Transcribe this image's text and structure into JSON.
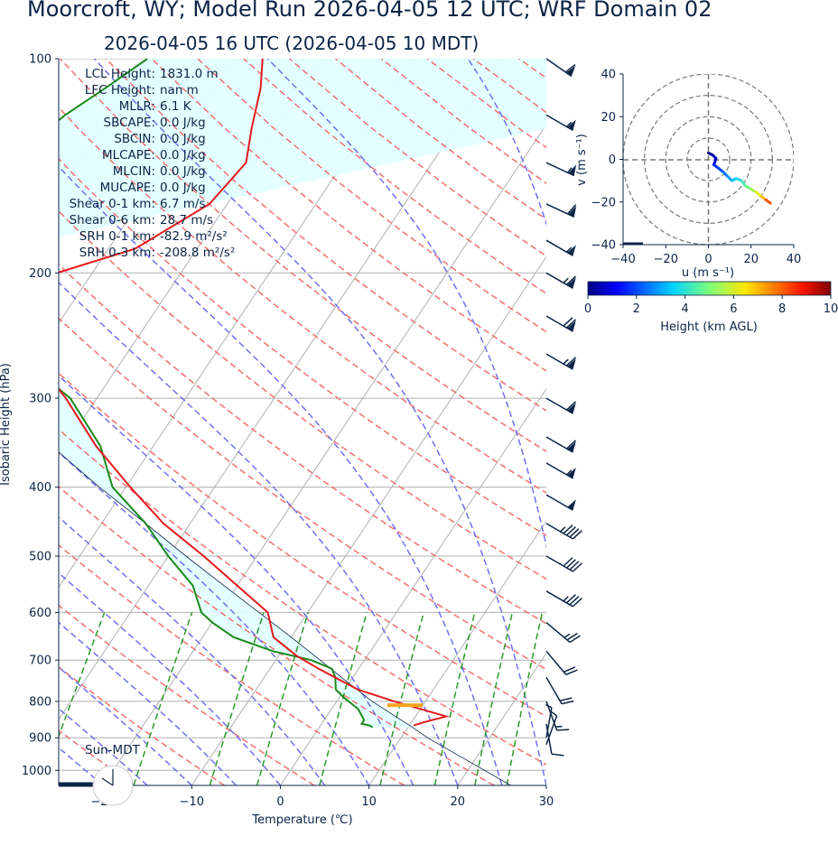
{
  "title": "Moorcroft, WY; Model Run 2026-04-05 12 UTC; WRF Domain 02",
  "subtitle": "2026-04-05 16 UTC  (2026-04-05 10 MDT)",
  "annotations": [
    {
      "label": "LCL Height:",
      "value": "1831.0 m"
    },
    {
      "label": "LFC Height:",
      "value": "nan m"
    },
    {
      "label": "MLLR:",
      "value": "6.1 K"
    },
    {
      "label": "SBCAPE:",
      "value": "0.0 J/kg"
    },
    {
      "label": "SBCIN:",
      "value": "0.0 J/kg"
    },
    {
      "label": "MLCAPE:",
      "value": "0.0 J/kg"
    },
    {
      "label": "MLCIN:",
      "value": "0.0 J/kg"
    },
    {
      "label": "MUCAPE:",
      "value": "0.0 J/kg"
    },
    {
      "label": "Shear 0-1 km:",
      "value": "6.7 m/s"
    },
    {
      "label": "Shear 0-6 km:",
      "value": "28.7 m/s"
    },
    {
      "label": "SRH 0-1 km:",
      "value": "-82.9 m²/s²"
    },
    {
      "label": "SRH 0-3 km:",
      "value": "-208.8 m²/s²"
    }
  ],
  "sun_label": "Sun-MDT",
  "colors": {
    "temperature": "#e31a1c",
    "dewpoint": "#1a8a1a",
    "parcel": "#0b2447",
    "cape_fill": "#e0ffff",
    "dry_adiabat": "#f07070",
    "moist_adiabat": "#7070f0",
    "mixing_ratio": "#2a9a2a",
    "isotherm": "#b0b0b0",
    "lcl_marker": "#f5a623",
    "text": "#0b2447"
  },
  "chart_data": [
    {
      "type": "line",
      "subtype": "skew-t",
      "xlabel": "Temperature (℃)",
      "ylabel": "Isobaric Height (hPa)",
      "xlim": [
        -25,
        30
      ],
      "ylim": [
        1050,
        100
      ],
      "x_ticks": [
        "−20",
        "−10",
        "0",
        "10",
        "20",
        "30"
      ],
      "x_tick_values": [
        -20,
        -10,
        0,
        10,
        20,
        30
      ],
      "y_ticks": [
        "100",
        "200",
        "300",
        "400",
        "500",
        "600",
        "700",
        "800",
        "900",
        "1000"
      ],
      "y_tick_values": [
        100,
        200,
        300,
        400,
        500,
        600,
        700,
        800,
        900,
        1000
      ],
      "series": [
        {
          "key": "temperature",
          "p": [
            865,
            855,
            840,
            800,
            770,
            720,
            690,
            650,
            600,
            550,
            500,
            450,
            400,
            350,
            300,
            280,
            250,
            225,
            215,
            200,
            185,
            160,
            140,
            125,
            110,
            100
          ],
          "t": [
            10.5,
            11.5,
            13.5,
            6.5,
            1.5,
            -4.5,
            -8.0,
            -12.0,
            -14.5,
            -20.0,
            -26.0,
            -33.0,
            -39.5,
            -46.5,
            -53.5,
            -57.0,
            -61.5,
            -65.5,
            -67.0,
            -64.0,
            -57.0,
            -52.0,
            -51.0,
            -53.0,
            -55.0,
            -57.0
          ]
        },
        {
          "key": "dewpoint",
          "p": [
            870,
            865,
            860,
            850,
            820,
            790,
            770,
            740,
            720,
            700,
            680,
            650,
            620,
            600,
            550,
            500,
            450,
            400,
            350,
            300,
            270,
            240,
            220,
            200,
            180,
            160,
            150,
            140,
            120,
            110,
            100
          ],
          "t": [
            6.0,
            5.5,
            4.5,
            4.5,
            3.0,
            0.5,
            -1.0,
            -2.0,
            -3.0,
            -6.0,
            -11.0,
            -16.5,
            -20.0,
            -22.0,
            -25.0,
            -30.0,
            -35.0,
            -41.5,
            -46.0,
            -53.0,
            -60.0,
            -67.0,
            -72.5,
            -75.5,
            -76.0,
            -79.0,
            -79.0,
            -78.0,
            -75.0,
            -72.5,
            -70.0
          ]
        },
        {
          "key": "parcel",
          "p": [
            1050,
            900,
            870,
            850,
            800,
            750,
            700,
            650,
            600,
            550,
            500,
            450,
            400,
            350,
            300,
            250,
            200
          ],
          "t": [
            26.0,
            13.0,
            10.5,
            8.7,
            4.0,
            -0.4,
            -5.0,
            -10.0,
            -15.5,
            -21.5,
            -28.0,
            -35.0,
            -43.0,
            -51.5,
            -61.0,
            -71.0,
            -82.0
          ]
        }
      ],
      "lcl": {
        "p": 810,
        "t_range": [
          6.0,
          10.0
        ]
      }
    },
    {
      "type": "line",
      "subtype": "hodograph",
      "xlabel": "u (m s⁻¹)",
      "ylabel": "v (m s⁻¹)",
      "xlim": [
        -40,
        40
      ],
      "ylim": [
        -40,
        40
      ],
      "x_ticks": [
        "−40",
        "−20",
        "0",
        "20",
        "40"
      ],
      "x_tick_values": [
        -40,
        -20,
        0,
        20,
        40
      ],
      "y_ticks": [
        "40",
        "20",
        "0",
        "−20",
        "−40"
      ],
      "y_tick_values": [
        40,
        20,
        0,
        -20,
        -40
      ],
      "ring_radii": [
        10,
        20,
        30,
        40
      ],
      "points": [
        {
          "u": 0.0,
          "v": 3.0,
          "h": 0.0
        },
        {
          "u": 2.0,
          "v": 2.0,
          "h": 0.3
        },
        {
          "u": 3.5,
          "v": 0.5,
          "h": 0.6
        },
        {
          "u": 3.0,
          "v": -1.5,
          "h": 1.0
        },
        {
          "u": 2.5,
          "v": -2.5,
          "h": 1.4
        },
        {
          "u": 4.5,
          "v": -4.0,
          "h": 1.8
        },
        {
          "u": 7.0,
          "v": -6.0,
          "h": 2.2
        },
        {
          "u": 9.0,
          "v": -8.0,
          "h": 2.7
        },
        {
          "u": 11.0,
          "v": -10.0,
          "h": 3.1
        },
        {
          "u": 13.0,
          "v": -9.0,
          "h": 3.5
        },
        {
          "u": 15.5,
          "v": -10.0,
          "h": 4.0
        },
        {
          "u": 17.5,
          "v": -12.5,
          "h": 4.6
        },
        {
          "u": 20.0,
          "v": -14.0,
          "h": 5.2
        },
        {
          "u": 22.5,
          "v": -15.5,
          "h": 5.8
        },
        {
          "u": 25.0,
          "v": -17.5,
          "h": 6.6
        },
        {
          "u": 27.0,
          "v": -19.0,
          "h": 7.5
        },
        {
          "u": 29.0,
          "v": -20.5,
          "h": 8.8
        }
      ]
    }
  ],
  "colorbar": {
    "label": "Height (km AGL)",
    "min": 0,
    "max": 10,
    "ticks": [
      "0",
      "2",
      "4",
      "6",
      "8",
      "10"
    ],
    "tick_values": [
      0,
      2,
      4,
      6,
      8,
      10
    ]
  },
  "wind_barbs": [
    {
      "p": 100,
      "speed": 60,
      "dir": 305
    },
    {
      "p": 120,
      "speed": 55,
      "dir": 300
    },
    {
      "p": 140,
      "speed": 55,
      "dir": 295
    },
    {
      "p": 160,
      "speed": 60,
      "dir": 295
    },
    {
      "p": 180,
      "speed": 55,
      "dir": 300
    },
    {
      "p": 200,
      "speed": 65,
      "dir": 300
    },
    {
      "p": 230,
      "speed": 70,
      "dir": 300
    },
    {
      "p": 260,
      "speed": 65,
      "dir": 300
    },
    {
      "p": 300,
      "speed": 60,
      "dir": 300
    },
    {
      "p": 340,
      "speed": 60,
      "dir": 300
    },
    {
      "p": 370,
      "speed": 55,
      "dir": 300
    },
    {
      "p": 410,
      "speed": 50,
      "dir": 300
    },
    {
      "p": 450,
      "speed": 45,
      "dir": 300
    },
    {
      "p": 500,
      "speed": 40,
      "dir": 300
    },
    {
      "p": 560,
      "speed": 35,
      "dir": 300
    },
    {
      "p": 620,
      "speed": 25,
      "dir": 310
    },
    {
      "p": 680,
      "speed": 20,
      "dir": 320
    },
    {
      "p": 740,
      "speed": 20,
      "dir": 330
    },
    {
      "p": 800,
      "speed": 15,
      "dir": 340
    },
    {
      "p": 860,
      "speed": 10,
      "dir": 350
    },
    {
      "p": 900,
      "speed": 5,
      "dir": 190
    },
    {
      "p": 920,
      "speed": 5,
      "dir": 200
    }
  ]
}
